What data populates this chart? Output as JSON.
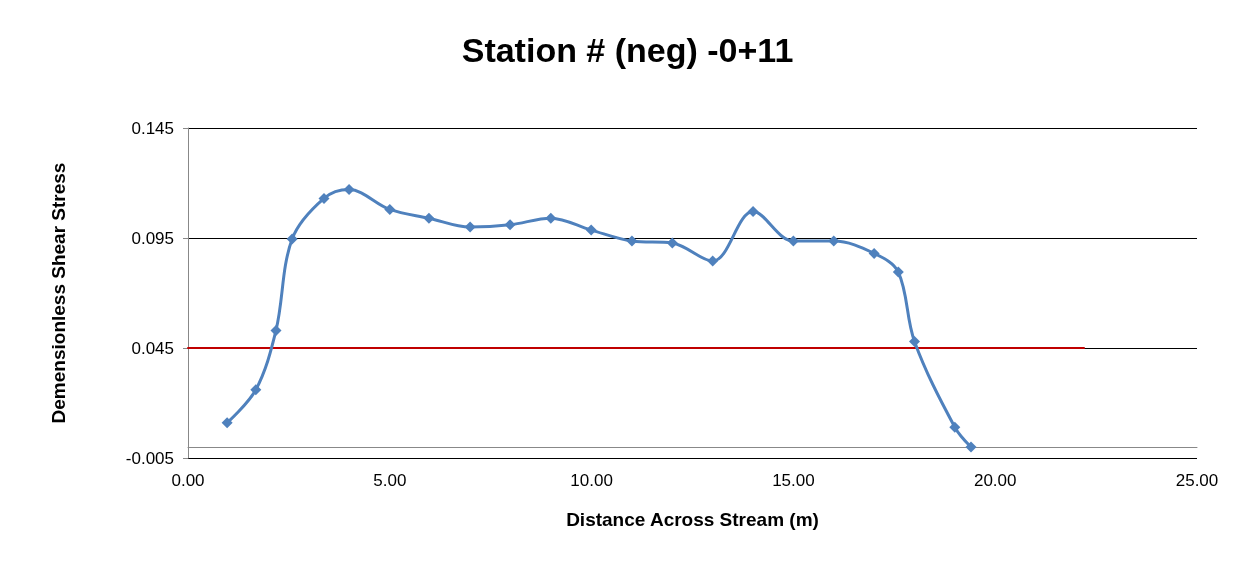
{
  "chart_data": {
    "type": "line",
    "title": "Station # (neg) -0+11",
    "xlabel": "Distance Across Stream (m)",
    "ylabel": "Demensionless Shear Stress",
    "series": [
      {
        "color": "#4f81bd",
        "x": [
          0.97,
          1.68,
          2.18,
          2.58,
          3.37,
          3.99,
          5.0,
          5.97,
          6.99,
          7.98,
          8.99,
          9.99,
          11.0,
          12.0,
          13.0,
          14.0,
          15.0,
          16.0,
          17.0,
          17.6,
          18.0,
          19.0,
          19.4
        ],
        "values": [
          0.011,
          0.026,
          0.053,
          0.0945,
          0.113,
          0.117,
          0.108,
          0.104,
          0.1,
          0.101,
          0.104,
          0.0986,
          0.0936,
          0.0927,
          0.0845,
          0.107,
          0.0936,
          0.0936,
          0.088,
          0.0795,
          0.048,
          0.009,
          0.0
        ]
      },
      {
        "color": "#c00000",
        "x": [
          0,
          22.2
        ],
        "values": [
          0.045,
          0.045
        ],
        "marker": "none"
      }
    ],
    "xlim": [
      0,
      25
    ],
    "xticks": [
      {
        "value": 0,
        "label": "0.00"
      },
      {
        "value": 5,
        "label": "5.00"
      },
      {
        "value": 10,
        "label": "10.00"
      },
      {
        "value": 15,
        "label": "15.00"
      },
      {
        "value": 20,
        "label": "20.00"
      },
      {
        "value": 25,
        "label": "25.00"
      }
    ],
    "ylim": [
      -0.005,
      0.145
    ],
    "yticks": [
      -0.005,
      0.045,
      0.095,
      0.145
    ],
    "grid": "y",
    "marker": "diamond",
    "line_style": "solid"
  }
}
